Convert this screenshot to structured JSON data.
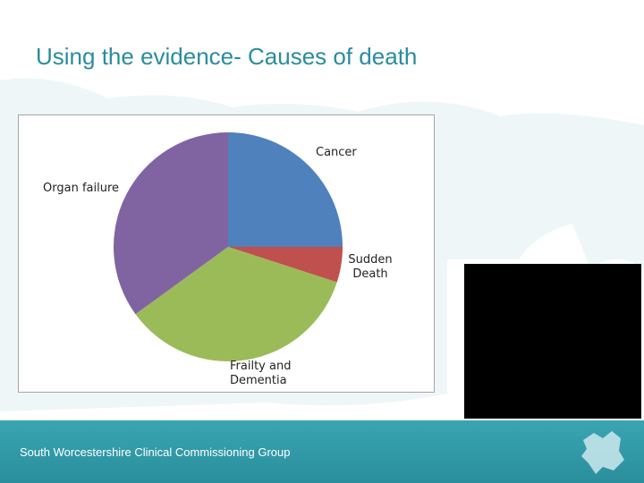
{
  "header": {
    "title": "Using the evidence- Causes of death"
  },
  "chart_data": {
    "type": "pie",
    "categories": [
      "Cancer",
      "Sudden Death",
      "Frailty and Dementia",
      "Organ failure"
    ],
    "values": [
      25,
      5,
      35,
      35
    ],
    "colors": [
      "#4f81bd",
      "#c0504d",
      "#9bbb59",
      "#8064a2"
    ]
  },
  "footer": {
    "organization": "South Worcestershire Clinical Commissioning Group"
  }
}
